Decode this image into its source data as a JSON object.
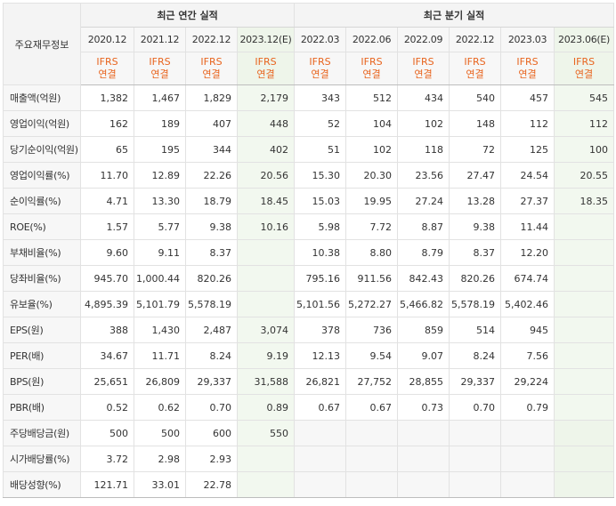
{
  "header": {
    "row_label": "주요재무정보",
    "annual_group": "최근 연간 실적",
    "quarterly_group": "최근 분기 실적",
    "annual_periods": [
      "2020.12",
      "2021.12",
      "2022.12",
      "2023.12(E)"
    ],
    "quarterly_periods": [
      "2022.03",
      "2022.06",
      "2022.09",
      "2022.12",
      "2023.03",
      "2023.06(E)"
    ],
    "basis_line1": "IFRS",
    "basis_line2": "연결"
  },
  "rows": [
    {
      "label": "매출액(억원)",
      "annual": [
        "1,382",
        "1,467",
        "1,829",
        "2,179"
      ],
      "quarterly": [
        "343",
        "512",
        "434",
        "540",
        "457",
        "545"
      ]
    },
    {
      "label": "영업이익(억원)",
      "annual": [
        "162",
        "189",
        "407",
        "448"
      ],
      "quarterly": [
        "52",
        "104",
        "102",
        "148",
        "112",
        "112"
      ]
    },
    {
      "label": "당기순이익(억원)",
      "annual": [
        "65",
        "195",
        "344",
        "402"
      ],
      "quarterly": [
        "51",
        "102",
        "118",
        "72",
        "125",
        "100"
      ]
    },
    {
      "label": "영업이익률(%)",
      "annual": [
        "11.70",
        "12.89",
        "22.26",
        "20.56"
      ],
      "quarterly": [
        "15.30",
        "20.30",
        "23.56",
        "27.47",
        "24.54",
        "20.55"
      ]
    },
    {
      "label": "순이익률(%)",
      "annual": [
        "4.71",
        "13.30",
        "18.79",
        "18.45"
      ],
      "quarterly": [
        "15.03",
        "19.95",
        "27.24",
        "13.28",
        "27.37",
        "18.35"
      ]
    },
    {
      "label": "ROE(%)",
      "annual": [
        "1.57",
        "5.77",
        "9.38",
        "10.16"
      ],
      "quarterly": [
        "5.98",
        "7.72",
        "8.87",
        "9.38",
        "11.44",
        ""
      ]
    },
    {
      "label": "부채비율(%)",
      "annual": [
        "9.60",
        "9.11",
        "8.37",
        ""
      ],
      "quarterly": [
        "10.38",
        "8.80",
        "8.79",
        "8.37",
        "12.20",
        ""
      ]
    },
    {
      "label": "당좌비율(%)",
      "annual": [
        "945.70",
        "1,000.44",
        "820.26",
        ""
      ],
      "quarterly": [
        "795.16",
        "911.56",
        "842.43",
        "820.26",
        "674.74",
        ""
      ]
    },
    {
      "label": "유보율(%)",
      "annual": [
        "4,895.39",
        "5,101.79",
        "5,578.19",
        ""
      ],
      "quarterly": [
        "5,101.56",
        "5,272.27",
        "5,466.82",
        "5,578.19",
        "5,402.46",
        ""
      ]
    },
    {
      "label": "EPS(원)",
      "annual": [
        "388",
        "1,430",
        "2,487",
        "3,074"
      ],
      "quarterly": [
        "378",
        "736",
        "859",
        "514",
        "945",
        ""
      ]
    },
    {
      "label": "PER(배)",
      "annual": [
        "34.67",
        "11.71",
        "8.24",
        "9.19"
      ],
      "quarterly": [
        "12.13",
        "9.54",
        "9.07",
        "8.24",
        "7.56",
        ""
      ]
    },
    {
      "label": "BPS(원)",
      "annual": [
        "25,651",
        "26,809",
        "29,337",
        "31,588"
      ],
      "quarterly": [
        "26,821",
        "27,752",
        "28,855",
        "29,337",
        "29,224",
        ""
      ]
    },
    {
      "label": "PBR(배)",
      "annual": [
        "0.52",
        "0.62",
        "0.70",
        "0.89"
      ],
      "quarterly": [
        "0.67",
        "0.67",
        "0.73",
        "0.70",
        "0.79",
        ""
      ]
    },
    {
      "label": "주당배당금(원)",
      "annual": [
        "500",
        "500",
        "600",
        "550"
      ],
      "quarterly": [
        "",
        "",
        "",
        "",
        "",
        ""
      ]
    },
    {
      "label": "시가배당률(%)",
      "annual": [
        "3.72",
        "2.98",
        "2.93",
        ""
      ],
      "quarterly": [
        "",
        "",
        "",
        "",
        "",
        ""
      ]
    },
    {
      "label": "배당성향(%)",
      "annual": [
        "121.71",
        "33.01",
        "22.78",
        ""
      ],
      "quarterly": [
        "",
        "",
        "",
        "",
        "",
        ""
      ]
    }
  ]
}
